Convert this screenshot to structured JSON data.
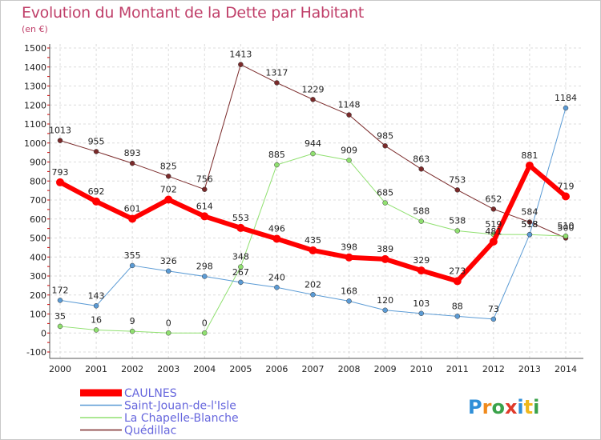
{
  "title": "Evolution du Montant de la Dette par Habitant",
  "subtitle": "(en €)",
  "logo": "Proxiti",
  "chart_data": {
    "type": "line",
    "x": [
      "2000",
      "2001",
      "2002",
      "2003",
      "2004",
      "2005",
      "2006",
      "2007",
      "2008",
      "2009",
      "2010",
      "2011",
      "2012",
      "2013",
      "2014"
    ],
    "ylim": [
      -100,
      1500
    ],
    "yticks": [
      "-100",
      "0",
      "100",
      "200",
      "300",
      "400",
      "500",
      "600",
      "700",
      "800",
      "900",
      "1000",
      "1100",
      "1200",
      "1300",
      "1400",
      "1500"
    ],
    "grid": true,
    "legend_placement": "bottom-left",
    "series": [
      {
        "name": "CAULNES",
        "color": "#ff0000",
        "width": 6,
        "values": [
          793,
          692,
          601,
          702,
          614,
          553,
          496,
          435,
          398,
          389,
          329,
          273,
          481,
          881,
          719
        ],
        "labels": [
          "793",
          "692",
          "601",
          "702",
          "614",
          "553",
          "496",
          "435",
          "398",
          "389",
          "329",
          "273",
          "481",
          "881",
          "719"
        ]
      },
      {
        "name": "Saint-Jouan-de-l'Isle",
        "color": "#5b9bd5",
        "width": 1,
        "values": [
          172,
          143,
          355,
          326,
          298,
          267,
          240,
          202,
          168,
          120,
          103,
          88,
          73,
          518,
          1184
        ],
        "labels": [
          "172",
          "143",
          "355",
          "326",
          "298",
          "267",
          "240",
          "202",
          "168",
          "120",
          "103",
          "88",
          "73",
          "518",
          "1184"
        ]
      },
      {
        "name": "La Chapelle-Blanche",
        "color": "#90e070",
        "width": 1,
        "values": [
          35,
          16,
          9,
          0,
          0,
          348,
          885,
          944,
          909,
          685,
          588,
          538,
          519,
          518,
          510
        ],
        "labels": [
          "35",
          "16",
          "9",
          "0",
          "0",
          "348",
          "885",
          "944",
          "909",
          "685",
          "588",
          "538",
          "519",
          "518",
          "510"
        ]
      },
      {
        "name": "Quédillac",
        "color": "#7a2a2a",
        "width": 1,
        "values": [
          1013,
          955,
          893,
          825,
          756,
          1413,
          1317,
          1229,
          1148,
          985,
          863,
          753,
          652,
          584,
          500
        ],
        "labels": [
          "1013",
          "955",
          "893",
          "825",
          "756",
          "1413",
          "1317",
          "1229",
          "1148",
          "985",
          "863",
          "753",
          "652",
          "584",
          "500"
        ]
      }
    ]
  }
}
